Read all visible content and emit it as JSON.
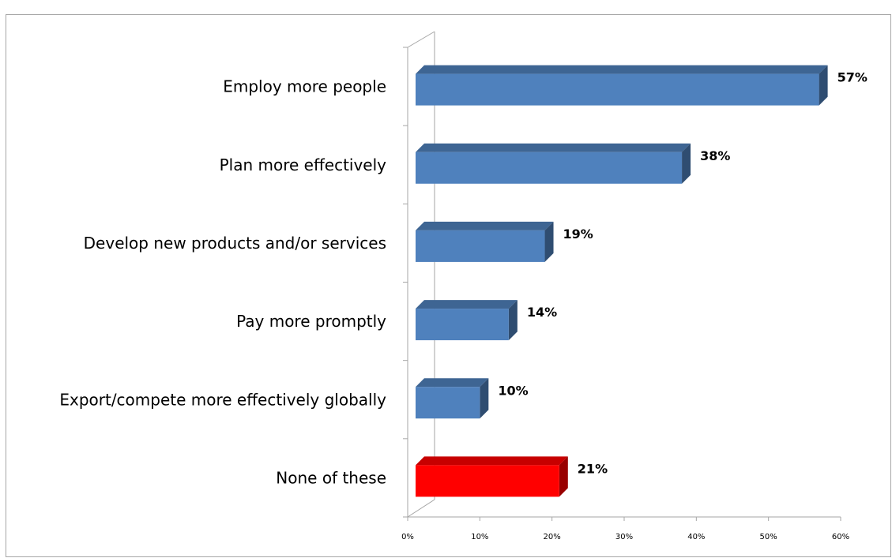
{
  "chart_data": {
    "type": "bar",
    "orientation": "horizontal",
    "style": "3d",
    "categories": [
      "Employ more people",
      "Plan more effectively",
      "Develop new products and/or services",
      "Pay more promptly",
      "Export/compete more effectively globally",
      "None of these"
    ],
    "values": [
      57,
      38,
      19,
      14,
      10,
      21
    ],
    "value_labels": [
      "57%",
      "38%",
      "19%",
      "14%",
      "10%",
      "21%"
    ],
    "bar_colors": [
      "#4f81bd",
      "#4f81bd",
      "#4f81bd",
      "#4f81bd",
      "#4f81bd",
      "#ff0000"
    ],
    "x_ticks": [
      "0%",
      "10%",
      "20%",
      "30%",
      "40%",
      "50%",
      "60%"
    ],
    "xlim": [
      0,
      60
    ],
    "grid": false,
    "legend": "none"
  }
}
